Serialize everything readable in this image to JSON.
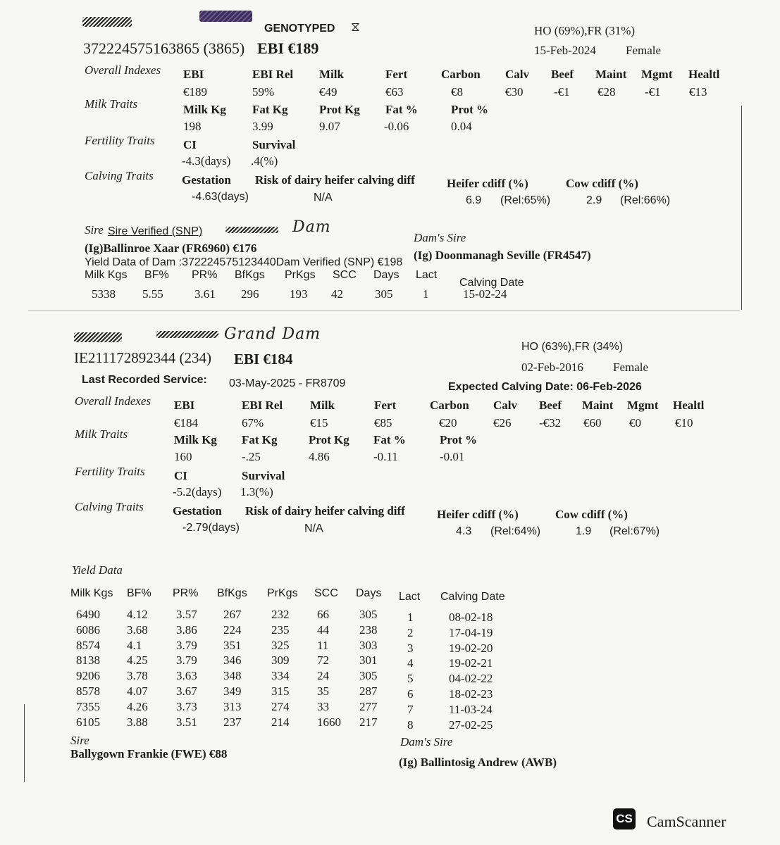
{
  "record1": {
    "genotyped": "GENOTYPED",
    "breed": "HO (69%),FR (31%)",
    "id": "372224575163865 (3865)",
    "ebi_title": "EBI €189",
    "dob": "15-Feb-2024",
    "sex": "Female",
    "overall": {
      "label": "Overall Indexes",
      "headers": [
        "EBI",
        "EBI Rel",
        "Milk",
        "Fert",
        "Carbon",
        "Calv",
        "Beef",
        "Maint",
        "Mgmt",
        "Healtl"
      ],
      "values": [
        "€189",
        "59%",
        "€49",
        "€63",
        "€8",
        "€30",
        "-€1",
        "€28",
        "-€1",
        "€13"
      ]
    },
    "milk": {
      "label": "Milk Traits",
      "headers": [
        "Milk Kg",
        "Fat Kg",
        "Prot Kg",
        "Fat %",
        "Prot %"
      ],
      "values": [
        "198",
        "3.99",
        "9.07",
        "-0.06",
        "0.04"
      ]
    },
    "fertility": {
      "label": "Fertility Traits",
      "headers": [
        "CI",
        "Survival"
      ],
      "values": [
        "-4.3(days)",
        ".4(%)"
      ]
    },
    "calving": {
      "label": "Calving Traits",
      "gestation": "Gestation",
      "risk": "Risk of dairy heifer calving diff",
      "heifer": "Heifer cdiff (%)",
      "cow": "Cow cdiff (%)",
      "gestation_val": "-4.63(days)",
      "risk_val": "N/A",
      "heifer_val": "6.9",
      "heifer_rel": "(Rel:65%)",
      "cow_val": "2.9",
      "cow_rel": "(Rel:66%)"
    },
    "sire_label": "Sire",
    "sire_verified": "Sire Verified (SNP)",
    "handwritten": "Dam",
    "sire_name": "(Ig)Ballinroe Xaar (FR6960) €176",
    "dams_sire_label": "Dam's Sire",
    "dams_sire_name": "(Ig) Doonmanagh Seville (FR4547)",
    "yield_title": "Yield Data of Dam :372224575123440Dam Verified (SNP) €198",
    "yield_headers": [
      "Milk Kgs",
      "BF%",
      "PR%",
      "BfKgs",
      "PrKgs",
      "SCC",
      "Days",
      "Lact",
      "Calving Date"
    ],
    "yield_row": [
      "5338",
      "5.55",
      "3.61",
      "296",
      "193",
      "42",
      "305",
      "1",
      "15-02-24"
    ]
  },
  "record2": {
    "handwritten": "Grand Dam",
    "breed": "HO (63%),FR (34%)",
    "id": "IE211172892344 (234)",
    "ebi_title": "EBI €184",
    "dob": "02-Feb-2016",
    "sex": "Female",
    "service_label": "Last Recorded Service:",
    "service_value": "03-May-2025 - FR8709",
    "expected_calving": "Expected Calving Date: 06-Feb-2026",
    "overall": {
      "label": "Overall Indexes",
      "headers": [
        "EBI",
        "EBI Rel",
        "Milk",
        "Fert",
        "Carbon",
        "Calv",
        "Beef",
        "Maint",
        "Mgmt",
        "Healtl"
      ],
      "values": [
        "€184",
        "67%",
        "€15",
        "€85",
        "€20",
        "€26",
        "-€32",
        "€60",
        "€0",
        "€10"
      ]
    },
    "milk": {
      "label": "Milk Traits",
      "headers": [
        "Milk Kg",
        "Fat Kg",
        "Prot Kg",
        "Fat %",
        "Prot %"
      ],
      "values": [
        "160",
        "-.25",
        "4.86",
        "-0.11",
        "-0.01"
      ]
    },
    "fertility": {
      "label": "Fertility Traits",
      "headers": [
        "CI",
        "Survival"
      ],
      "values": [
        "-5.2(days)",
        "1.3(%)"
      ]
    },
    "calving": {
      "label": "Calving Traits",
      "gestation": "Gestation",
      "risk": "Risk of dairy heifer calving diff",
      "heifer": "Heifer cdiff (%)",
      "cow": "Cow cdiff (%)",
      "gestation_val": "-2.79(days)",
      "risk_val": "N/A",
      "heifer_val": "4.3",
      "heifer_rel": "(Rel:64%)",
      "cow_val": "1.9",
      "cow_rel": "(Rel:67%)"
    },
    "yield_title": "Yield Data",
    "yield_headers": [
      "Milk Kgs",
      "BF%",
      "PR%",
      "BfKgs",
      "PrKgs",
      "SCC",
      "Days",
      "Lact",
      "Calving Date"
    ],
    "yield_rows": [
      [
        "6490",
        "4.12",
        "3.57",
        "267",
        "232",
        "66",
        "305",
        "1",
        "08-02-18"
      ],
      [
        "6086",
        "3.68",
        "3.86",
        "224",
        "235",
        "44",
        "238",
        "2",
        "17-04-19"
      ],
      [
        "8574",
        "4.1",
        "3.79",
        "351",
        "325",
        "11",
        "303",
        "3",
        "19-02-20"
      ],
      [
        "8138",
        "4.25",
        "3.79",
        "346",
        "309",
        "72",
        "301",
        "4",
        "19-02-21"
      ],
      [
        "9206",
        "3.78",
        "3.63",
        "348",
        "334",
        "24",
        "305",
        "5",
        "04-02-22"
      ],
      [
        "8578",
        "4.07",
        "3.67",
        "349",
        "315",
        "35",
        "287",
        "6",
        "18-02-23"
      ],
      [
        "7355",
        "4.26",
        "3.73",
        "313",
        "274",
        "33",
        "277",
        "7",
        "11-03-24"
      ],
      [
        "6105",
        "3.88",
        "3.51",
        "237",
        "214",
        "1660",
        "217",
        "8",
        "27-02-25"
      ]
    ],
    "sire_label": "Sire",
    "sire_name": "Ballygown Frankie (FWE) €88",
    "dams_sire_label": "Dam's Sire",
    "dams_sire_name": "(Ig) Ballintosig Andrew (AWB)"
  },
  "watermark": {
    "logo": "CS",
    "text": "CamScanner"
  }
}
